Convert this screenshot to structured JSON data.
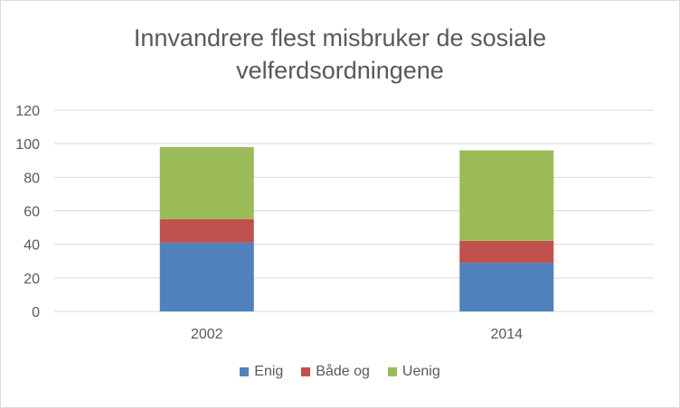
{
  "chart_data": {
    "type": "bar",
    "stacked": true,
    "title_lines": [
      "Innvandrere flest misbruker de sosiale",
      "velferdsordningene"
    ],
    "categories": [
      "2002",
      "2014"
    ],
    "series": [
      {
        "name": "Enig",
        "values": [
          41,
          29
        ],
        "color": "#4f81bd"
      },
      {
        "name": "Både og",
        "values": [
          14,
          13
        ],
        "color": "#c0504d"
      },
      {
        "name": "Uenig",
        "values": [
          43,
          54
        ],
        "color": "#9bbb59"
      }
    ],
    "ylim": [
      0,
      120
    ],
    "yticks": [
      "0",
      "20",
      "40",
      "60",
      "80",
      "100",
      "120"
    ],
    "grid": true,
    "legend_position": "bottom",
    "xlabel": "",
    "ylabel": ""
  }
}
